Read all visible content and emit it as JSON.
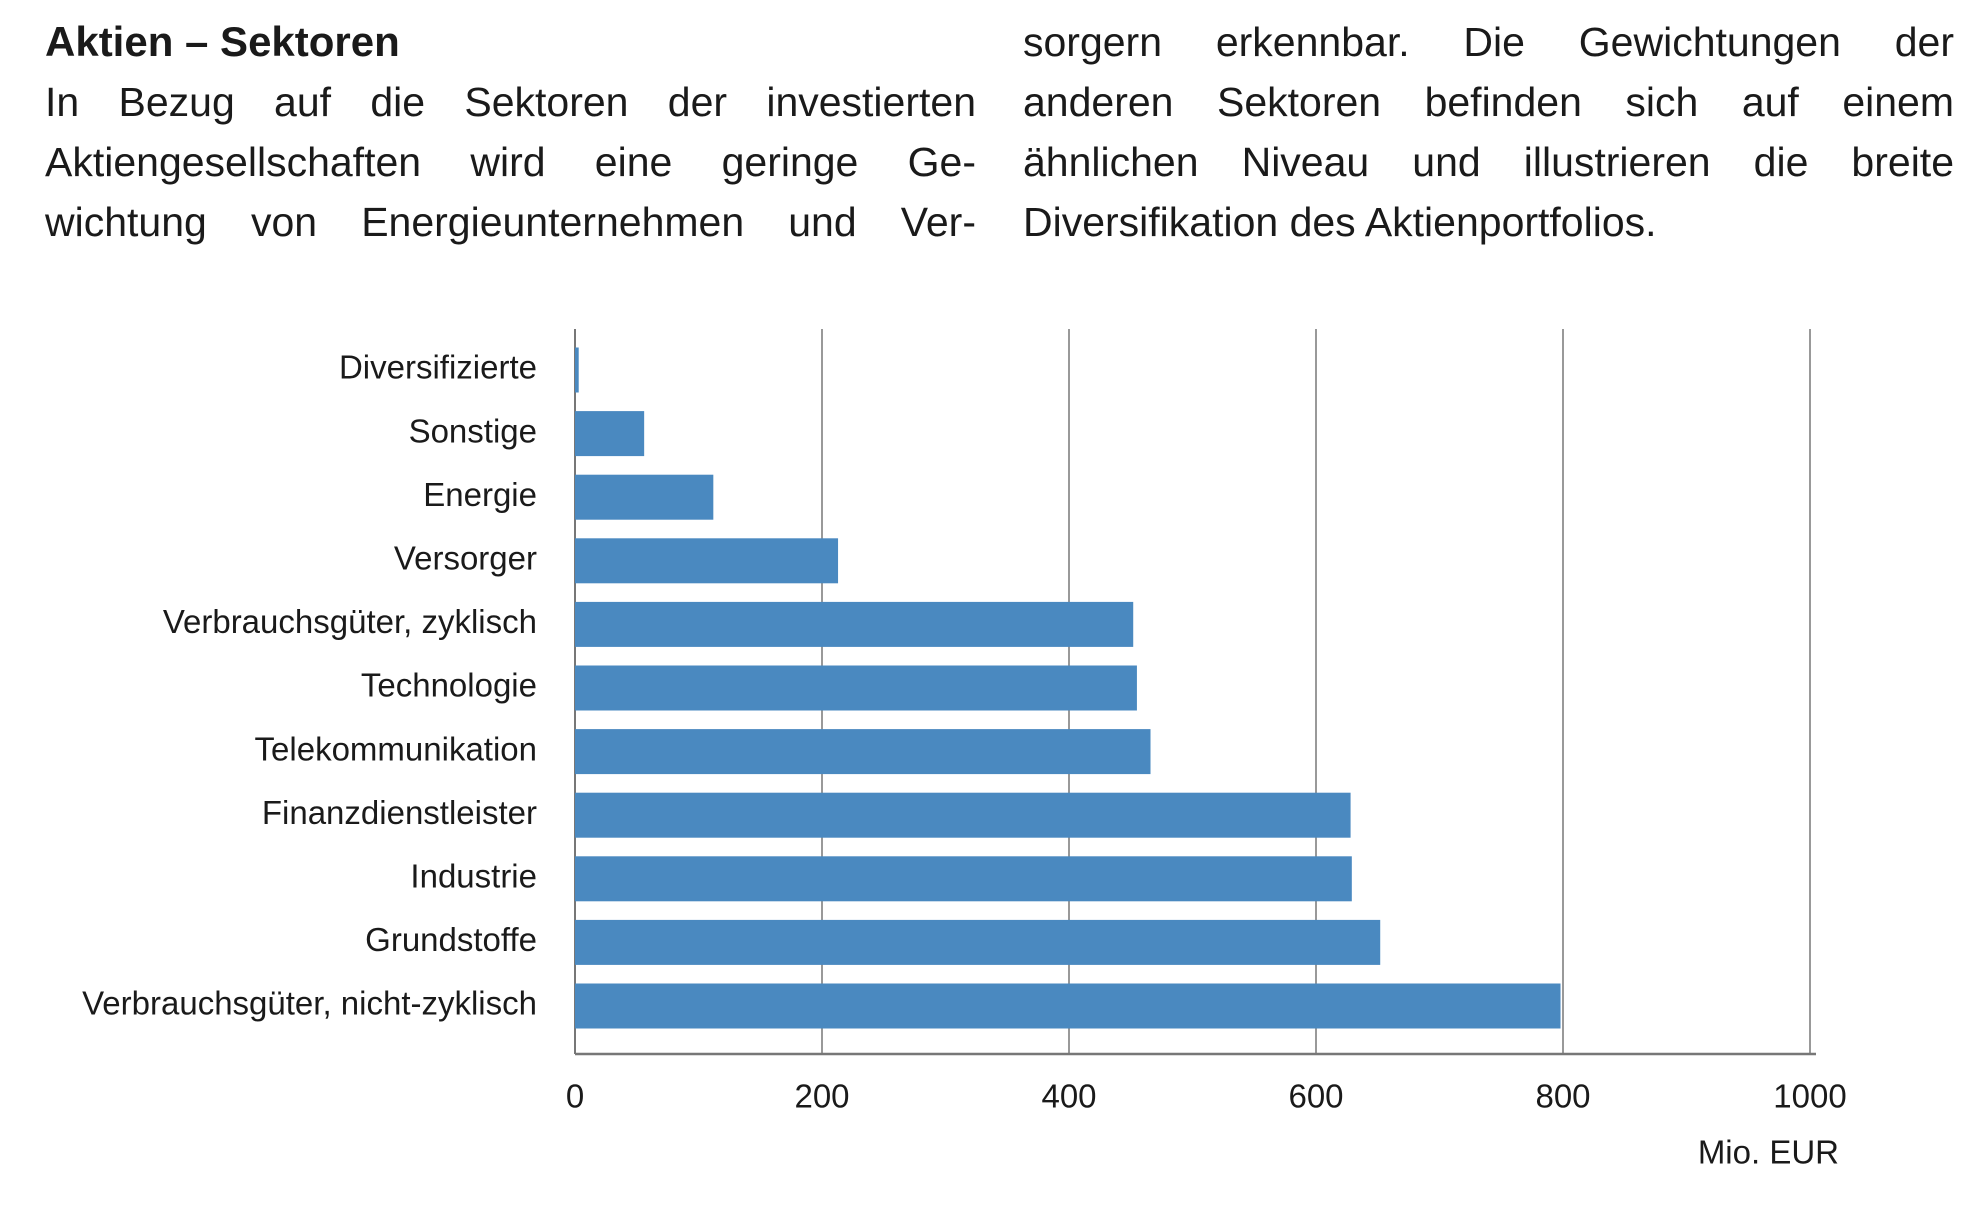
{
  "chart_data": {
    "type": "hbar",
    "title": "Aktien – Sektoren",
    "categories": [
      "Diversifizierte",
      "Sonstige",
      "Energie",
      "Versorger",
      "Verbrauchsgüter, zyklisch",
      "Technologie",
      "Telekommunikation",
      "Finanzdienstleister",
      "Industrie",
      "Grundstoffe",
      "Verbrauchsgüter, nicht-zyklisch"
    ],
    "values": [
      3,
      56,
      112,
      213,
      452,
      455,
      466,
      628,
      629,
      652,
      798
    ],
    "color": "#4a89c0",
    "xlim": [
      0,
      1000
    ],
    "xticks": [
      0,
      200,
      400,
      600,
      800,
      1000
    ],
    "x_label": "Mio. EUR",
    "grid": true
  },
  "text_columns": [
    [
      "In Bezug auf die Sektoren der investierten",
      "Aktiengesellschaften wird eine geringe Ge-",
      "wichtung von Energieunternehmen und Ver-"
    ],
    [
      "sorgern erkennbar. Die Gewichtungen der",
      "anderen Sektoren befinden sich auf einem",
      "ähnlichen Niveau und illustrieren die breite",
      "Diversifikation des Aktienportfolios."
    ]
  ]
}
